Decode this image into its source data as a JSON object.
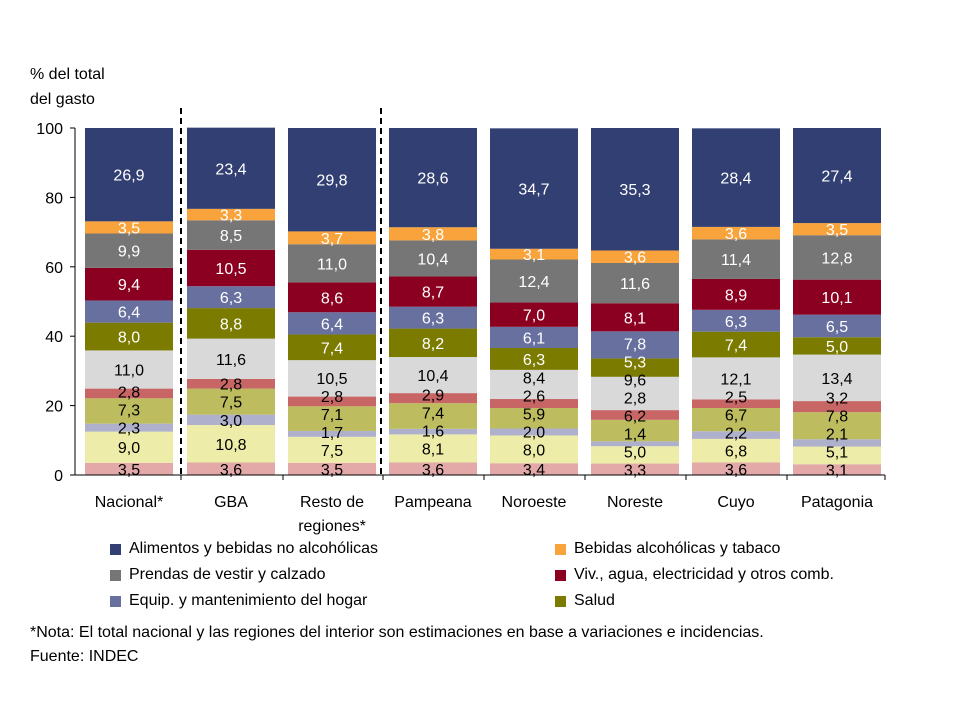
{
  "chart_data": {
    "type": "bar",
    "stacked": true,
    "ylabel": "% del total del gasto",
    "ylim": [
      0,
      100
    ],
    "yticks": [
      0,
      20,
      40,
      60,
      80,
      100
    ],
    "grid": false,
    "legend_position": "bottom",
    "categories": [
      "Nacional*",
      "GBA",
      "Resto de regiones*",
      "Pampeana",
      "Noroeste",
      "Noreste",
      "Cuyo",
      "Patagonia"
    ],
    "series": [
      {
        "color": "#e3a9a9",
        "label_color": "#000000",
        "values": [
          3.5,
          3.6,
          3.5,
          3.6,
          3.4,
          3.3,
          3.6,
          3.1
        ]
      },
      {
        "color": "#ededa9",
        "label_color": "#000000",
        "values": [
          9.0,
          10.8,
          7.5,
          8.1,
          8.0,
          5.0,
          6.8,
          5.1
        ]
      },
      {
        "color": "#afb0cc",
        "label_color": "#000000",
        "values": [
          2.3,
          3.0,
          1.7,
          1.6,
          2.0,
          1.4,
          2.2,
          2.1
        ]
      },
      {
        "color": "#bdbd60",
        "label_color": "#000000",
        "values": [
          7.3,
          7.5,
          7.1,
          7.4,
          5.9,
          6.2,
          6.7,
          7.8
        ]
      },
      {
        "color": "#c86666",
        "label_color": "#000000",
        "values": [
          2.8,
          2.8,
          2.8,
          2.9,
          2.6,
          2.8,
          2.5,
          3.2
        ]
      },
      {
        "color": "#d9d9d9",
        "label_color": "#000000",
        "values": [
          11.0,
          11.6,
          10.5,
          10.4,
          8.4,
          9.6,
          12.1,
          13.4
        ]
      },
      {
        "name": "Salud",
        "color": "#7b7b00",
        "label_color": "#ffffff",
        "values": [
          8.0,
          8.8,
          7.4,
          8.2,
          6.3,
          5.3,
          7.4,
          5.0
        ]
      },
      {
        "name": "Equip. y mantenimiento del hogar",
        "color": "#67709e",
        "label_color": "#ffffff",
        "values": [
          6.4,
          6.3,
          6.4,
          6.3,
          6.1,
          7.8,
          6.3,
          6.5
        ]
      },
      {
        "name": "Viv., agua, electricidad y otros comb.",
        "color": "#8b0021",
        "label_color": "#ffffff",
        "values": [
          9.4,
          10.5,
          8.6,
          8.7,
          7.0,
          8.1,
          8.9,
          10.1
        ]
      },
      {
        "name": "Prendas de vestir y calzado",
        "color": "#767676",
        "label_color": "#ffffff",
        "values": [
          9.9,
          8.5,
          11.0,
          10.4,
          12.4,
          11.6,
          11.4,
          12.8
        ]
      },
      {
        "name": "Bebidas alcohólicas y tabaco",
        "color": "#f9a33c",
        "label_color": "#ffffff",
        "values": [
          3.5,
          3.3,
          3.7,
          3.8,
          3.1,
          3.6,
          3.6,
          3.5
        ]
      },
      {
        "name": "Alimentos y bebidas no alcohólicas",
        "color": "#323f73",
        "label_color": "#ffffff",
        "values": [
          26.9,
          23.4,
          29.8,
          28.6,
          34.7,
          35.3,
          28.4,
          27.4
        ]
      }
    ]
  },
  "ytitle_lines": [
    "% del total",
    "del gasto"
  ],
  "legend": [
    {
      "label": "Alimentos y bebidas no alcohólicas",
      "color": "#323f73"
    },
    {
      "label": "Bebidas alcohólicas y tabaco",
      "color": "#f9a33c"
    },
    {
      "label": "Prendas de vestir y calzado",
      "color": "#767676"
    },
    {
      "label": "Viv., agua, electricidad y otros comb.",
      "color": "#8b0021"
    },
    {
      "label": "Equip. y mantenimiento del hogar",
      "color": "#67709e"
    },
    {
      "label": "Salud",
      "color": "#7b7b00"
    }
  ],
  "notes": {
    "nota": "*Nota: El total nacional y las regiones del interior son estimaciones en base a variaciones e incidencias.",
    "fuente": "Fuente: INDEC"
  }
}
